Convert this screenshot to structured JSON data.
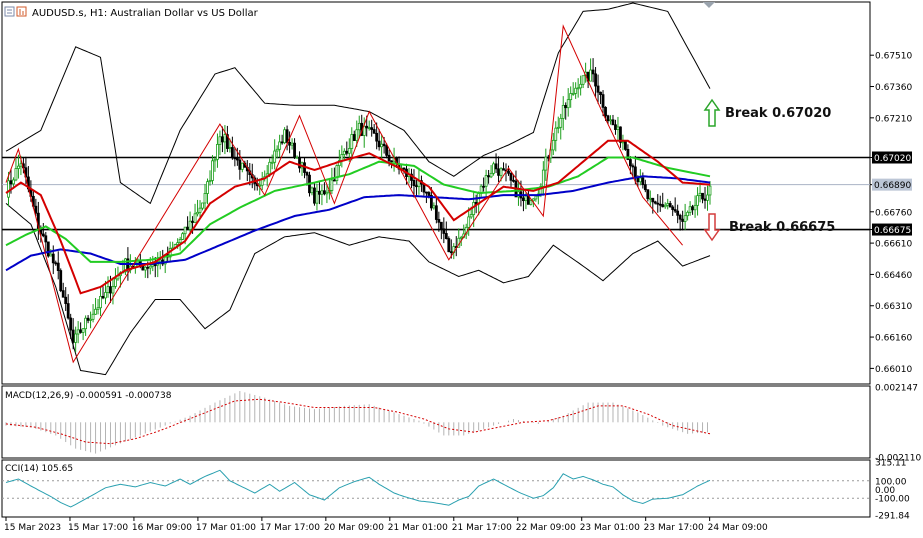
{
  "header": {
    "symbol_title": "AUDUSD.s, H1:  Australian Dollar vs US Dollar"
  },
  "colors": {
    "up_candle": "#1b9e1b",
    "down_candle": "#000000",
    "ma_fast": "#d40000",
    "ma_mid": "#22cc22",
    "ma_slow": "#0000c8",
    "bands": "#000000",
    "zigzag": "#d40000",
    "level_line": "#000000",
    "bid_line": "#a9b3c4",
    "arrow_up": "#2aa52a",
    "arrow_down": "#d43c3c",
    "macd_hist": "#b4b4b4",
    "macd_signal": "#d40000",
    "cci_line": "#2aa0b0"
  },
  "chart_data": [
    {
      "type": "candlestick",
      "symbol": "AUDUSD.s",
      "timeframe": "H1",
      "title": "AUDUSD.s, H1:  Australian Dollar vs US Dollar",
      "ylim": [
        0.6594,
        0.6776
      ],
      "y_ticks": [
        "0.67510",
        "0.67360",
        "0.67210",
        "0.67020",
        "0.66890",
        "0.66760",
        "0.66675",
        "0.66610",
        "0.66460",
        "0.66310",
        "0.66160",
        "0.66010"
      ],
      "x_tick_labels": [
        "15 Mar 2023",
        "15 Mar 17:00",
        "16 Mar 09:00",
        "17 Mar 01:00",
        "17 Mar 17:00",
        "20 Mar 09:00",
        "21 Mar 01:00",
        "21 Mar 17:00",
        "22 Mar 09:00",
        "23 Mar 01:00",
        "23 Mar 17:00",
        "24 Mar 09:00"
      ],
      "levels": [
        {
          "value": 0.6702,
          "tag": "0.67020",
          "annotation": "Break 0.67020",
          "direction": "up"
        },
        {
          "value": 0.66675,
          "tag": "0.66675",
          "annotation": "Break 0.66675",
          "direction": "down"
        }
      ],
      "current_price": {
        "value": 0.6689,
        "tag": "0.66890"
      },
      "close_path": [
        [
          0,
          0.6686
        ],
        [
          6,
          0.67
        ],
        [
          13,
          0.6669
        ],
        [
          21,
          0.6646
        ],
        [
          27,
          0.6613
        ],
        [
          33,
          0.6625
        ],
        [
          40,
          0.6636
        ],
        [
          48,
          0.6651
        ],
        [
          56,
          0.665
        ],
        [
          64,
          0.6653
        ],
        [
          72,
          0.6666
        ],
        [
          80,
          0.6683
        ],
        [
          86,
          0.6714
        ],
        [
          92,
          0.6702
        ],
        [
          100,
          0.6688
        ],
        [
          106,
          0.6699
        ],
        [
          112,
          0.6713
        ],
        [
          118,
          0.67
        ],
        [
          124,
          0.6682
        ],
        [
          130,
          0.6688
        ],
        [
          136,
          0.6705
        ],
        [
          142,
          0.6716
        ],
        [
          148,
          0.6712
        ],
        [
          154,
          0.6702
        ],
        [
          160,
          0.6695
        ],
        [
          166,
          0.6688
        ],
        [
          172,
          0.6678
        ],
        [
          178,
          0.6657
        ],
        [
          184,
          0.6665
        ],
        [
          190,
          0.6686
        ],
        [
          196,
          0.6698
        ],
        [
          202,
          0.6692
        ],
        [
          208,
          0.668
        ],
        [
          214,
          0.6687
        ],
        [
          220,
          0.6712
        ],
        [
          224,
          0.6724
        ],
        [
          230,
          0.6738
        ],
        [
          236,
          0.6742
        ],
        [
          242,
          0.6721
        ],
        [
          248,
          0.671
        ],
        [
          254,
          0.6692
        ],
        [
          260,
          0.6678
        ],
        [
          266,
          0.668
        ],
        [
          272,
          0.667
        ],
        [
          278,
          0.6681
        ],
        [
          283,
          0.6686
        ]
      ],
      "bands_upper_path": [
        [
          0,
          0.6705
        ],
        [
          14,
          0.6715
        ],
        [
          28,
          0.6755
        ],
        [
          38,
          0.675
        ],
        [
          46,
          0.669
        ],
        [
          58,
          0.668
        ],
        [
          70,
          0.6715
        ],
        [
          84,
          0.6742
        ],
        [
          92,
          0.6745
        ],
        [
          104,
          0.6728
        ],
        [
          116,
          0.6727
        ],
        [
          132,
          0.6727
        ],
        [
          146,
          0.6724
        ],
        [
          160,
          0.6715
        ],
        [
          170,
          0.67
        ],
        [
          180,
          0.6693
        ],
        [
          192,
          0.6703
        ],
        [
          202,
          0.6708
        ],
        [
          212,
          0.6714
        ],
        [
          222,
          0.6752
        ],
        [
          232,
          0.6772
        ],
        [
          242,
          0.6773
        ],
        [
          252,
          0.6776
        ],
        [
          266,
          0.6772
        ],
        [
          283,
          0.6735
        ]
      ],
      "bands_lower_path": [
        [
          0,
          0.668
        ],
        [
          10,
          0.667
        ],
        [
          20,
          0.664
        ],
        [
          30,
          0.66
        ],
        [
          40,
          0.6598
        ],
        [
          50,
          0.6618
        ],
        [
          60,
          0.6634
        ],
        [
          70,
          0.6634
        ],
        [
          80,
          0.662
        ],
        [
          90,
          0.6629
        ],
        [
          100,
          0.6656
        ],
        [
          112,
          0.6664
        ],
        [
          124,
          0.6666
        ],
        [
          138,
          0.666
        ],
        [
          150,
          0.6664
        ],
        [
          162,
          0.6662
        ],
        [
          170,
          0.6652
        ],
        [
          182,
          0.6645
        ],
        [
          190,
          0.6648
        ],
        [
          200,
          0.6642
        ],
        [
          210,
          0.6645
        ],
        [
          220,
          0.666
        ],
        [
          232,
          0.665
        ],
        [
          240,
          0.6643
        ],
        [
          252,
          0.6656
        ],
        [
          262,
          0.6662
        ],
        [
          272,
          0.665
        ],
        [
          283,
          0.6655
        ]
      ],
      "ma_fast_path": [
        [
          0,
          0.6685
        ],
        [
          6,
          0.669
        ],
        [
          14,
          0.6684
        ],
        [
          22,
          0.6662
        ],
        [
          30,
          0.6637
        ],
        [
          38,
          0.664
        ],
        [
          48,
          0.6648
        ],
        [
          60,
          0.6652
        ],
        [
          72,
          0.6662
        ],
        [
          82,
          0.668
        ],
        [
          92,
          0.6688
        ],
        [
          104,
          0.6692
        ],
        [
          114,
          0.67
        ],
        [
          124,
          0.6696
        ],
        [
          134,
          0.67
        ],
        [
          146,
          0.6704
        ],
        [
          158,
          0.6697
        ],
        [
          170,
          0.6688
        ],
        [
          180,
          0.6672
        ],
        [
          190,
          0.668
        ],
        [
          200,
          0.6688
        ],
        [
          212,
          0.6686
        ],
        [
          222,
          0.669
        ],
        [
          232,
          0.67
        ],
        [
          242,
          0.671
        ],
        [
          250,
          0.671
        ],
        [
          262,
          0.67
        ],
        [
          272,
          0.669
        ],
        [
          283,
          0.6689
        ]
      ],
      "ma_mid_path": [
        [
          0,
          0.666
        ],
        [
          8,
          0.6665
        ],
        [
          16,
          0.6669
        ],
        [
          24,
          0.6663
        ],
        [
          34,
          0.6652
        ],
        [
          46,
          0.6652
        ],
        [
          58,
          0.6653
        ],
        [
          70,
          0.6656
        ],
        [
          82,
          0.667
        ],
        [
          94,
          0.6678
        ],
        [
          108,
          0.6686
        ],
        [
          124,
          0.669
        ],
        [
          138,
          0.6694
        ],
        [
          150,
          0.67
        ],
        [
          164,
          0.6698
        ],
        [
          176,
          0.6689
        ],
        [
          190,
          0.6685
        ],
        [
          204,
          0.6686
        ],
        [
          218,
          0.6688
        ],
        [
          230,
          0.6693
        ],
        [
          242,
          0.6702
        ],
        [
          252,
          0.6702
        ],
        [
          266,
          0.6697
        ],
        [
          283,
          0.6693
        ]
      ],
      "ma_slow_path": [
        [
          0,
          0.6648
        ],
        [
          10,
          0.6655
        ],
        [
          22,
          0.6658
        ],
        [
          34,
          0.6656
        ],
        [
          46,
          0.6651
        ],
        [
          58,
          0.6651
        ],
        [
          72,
          0.6653
        ],
        [
          86,
          0.666
        ],
        [
          100,
          0.6667
        ],
        [
          116,
          0.6674
        ],
        [
          130,
          0.6677
        ],
        [
          144,
          0.6683
        ],
        [
          158,
          0.6684
        ],
        [
          172,
          0.6683
        ],
        [
          186,
          0.6682
        ],
        [
          200,
          0.6684
        ],
        [
          214,
          0.6684
        ],
        [
          228,
          0.6686
        ],
        [
          242,
          0.669
        ],
        [
          256,
          0.6693
        ],
        [
          270,
          0.6692
        ],
        [
          283,
          0.669
        ]
      ],
      "zigzag_path": [
        [
          0,
          0.669
        ],
        [
          5,
          0.6706
        ],
        [
          27,
          0.6604
        ],
        [
          86,
          0.6718
        ],
        [
          104,
          0.6684
        ],
        [
          118,
          0.6722
        ],
        [
          132,
          0.668
        ],
        [
          146,
          0.6724
        ],
        [
          178,
          0.6653
        ],
        [
          202,
          0.6697
        ],
        [
          216,
          0.6674
        ],
        [
          224,
          0.6765
        ],
        [
          240,
          0.6723
        ],
        [
          256,
          0.6683
        ],
        [
          272,
          0.666
        ]
      ]
    },
    {
      "type": "line",
      "indicator": "MACD(12,26,9)",
      "label": "MACD(12,26,9) -0.000591 -0.000738",
      "value_main": -0.000591,
      "value_signal": -0.000738,
      "ylim": [
        -0.00211,
        0.002147
      ],
      "y_ticks": [
        "0.002147",
        "-0.002110"
      ],
      "histogram_path": [
        [
          0,
          -0.0002
        ],
        [
          10,
          -0.0003
        ],
        [
          20,
          -0.0008
        ],
        [
          28,
          -0.0016
        ],
        [
          36,
          -0.0019
        ],
        [
          44,
          -0.0014
        ],
        [
          54,
          -0.0008
        ],
        [
          64,
          -0.0002
        ],
        [
          74,
          0.0004
        ],
        [
          84,
          0.0012
        ],
        [
          94,
          0.0019
        ],
        [
          104,
          0.0015
        ],
        [
          114,
          0.001
        ],
        [
          124,
          0.0008
        ],
        [
          136,
          0.001
        ],
        [
          146,
          0.0011
        ],
        [
          156,
          0.0006
        ],
        [
          166,
          0.0001
        ],
        [
          176,
          -0.0008
        ],
        [
          184,
          -0.0008
        ],
        [
          194,
          -0.0003
        ],
        [
          204,
          0.0002
        ],
        [
          214,
          -0.0001
        ],
        [
          224,
          0.0004
        ],
        [
          234,
          0.0012
        ],
        [
          244,
          0.0012
        ],
        [
          254,
          0.0006
        ],
        [
          264,
          -0.0002
        ],
        [
          274,
          -0.0007
        ],
        [
          283,
          -0.0006
        ]
      ],
      "signal_path": [
        [
          0,
          -0.0001
        ],
        [
          12,
          -0.0003
        ],
        [
          22,
          -0.0007
        ],
        [
          32,
          -0.0012
        ],
        [
          42,
          -0.0013
        ],
        [
          52,
          -0.001
        ],
        [
          62,
          -0.0005
        ],
        [
          72,
          0.0001
        ],
        [
          82,
          0.0007
        ],
        [
          92,
          0.0013
        ],
        [
          102,
          0.0014
        ],
        [
          112,
          0.0012
        ],
        [
          124,
          0.0009
        ],
        [
          136,
          0.0009
        ],
        [
          148,
          0.0009
        ],
        [
          158,
          0.0006
        ],
        [
          168,
          0.0002
        ],
        [
          178,
          -0.0004
        ],
        [
          188,
          -0.0006
        ],
        [
          198,
          -0.0003
        ],
        [
          208,
          0.0
        ],
        [
          218,
          0.0001
        ],
        [
          228,
          0.0005
        ],
        [
          238,
          0.001
        ],
        [
          248,
          0.001
        ],
        [
          258,
          0.0005
        ],
        [
          268,
          -0.0002
        ],
        [
          283,
          -0.0007
        ]
      ]
    },
    {
      "type": "line",
      "indicator": "CCI(14)",
      "label": "CCI(14) 105.65",
      "value": 105.65,
      "ylim": [
        -291.84,
        315.11
      ],
      "y_ticks": [
        "315.11",
        "100.00",
        "0.00",
        "-100.00",
        "-291.84"
      ],
      "levels": [
        100,
        -100
      ],
      "cci_path": [
        [
          0,
          80
        ],
        [
          5,
          120
        ],
        [
          10,
          40
        ],
        [
          14,
          -20
        ],
        [
          18,
          -80
        ],
        [
          22,
          -150
        ],
        [
          26,
          -200
        ],
        [
          30,
          -140
        ],
        [
          35,
          -60
        ],
        [
          40,
          20
        ],
        [
          46,
          60
        ],
        [
          52,
          30
        ],
        [
          58,
          80
        ],
        [
          64,
          40
        ],
        [
          70,
          120
        ],
        [
          74,
          60
        ],
        [
          80,
          150
        ],
        [
          86,
          220
        ],
        [
          90,
          100
        ],
        [
          95,
          30
        ],
        [
          100,
          -40
        ],
        [
          106,
          60
        ],
        [
          110,
          -20
        ],
        [
          116,
          80
        ],
        [
          122,
          -60
        ],
        [
          128,
          -120
        ],
        [
          134,
          20
        ],
        [
          140,
          90
        ],
        [
          146,
          140
        ],
        [
          150,
          60
        ],
        [
          156,
          -40
        ],
        [
          160,
          -80
        ],
        [
          166,
          -130
        ],
        [
          172,
          -150
        ],
        [
          178,
          -180
        ],
        [
          182,
          -120
        ],
        [
          186,
          -80
        ],
        [
          190,
          40
        ],
        [
          196,
          120
        ],
        [
          200,
          60
        ],
        [
          206,
          -30
        ],
        [
          212,
          -100
        ],
        [
          216,
          -70
        ],
        [
          220,
          20
        ],
        [
          224,
          180
        ],
        [
          228,
          120
        ],
        [
          232,
          150
        ],
        [
          236,
          110
        ],
        [
          240,
          60
        ],
        [
          244,
          30
        ],
        [
          248,
          -60
        ],
        [
          252,
          -130
        ],
        [
          256,
          -160
        ],
        [
          260,
          -110
        ],
        [
          266,
          -100
        ],
        [
          272,
          -60
        ],
        [
          278,
          40
        ],
        [
          283,
          106
        ]
      ]
    }
  ]
}
